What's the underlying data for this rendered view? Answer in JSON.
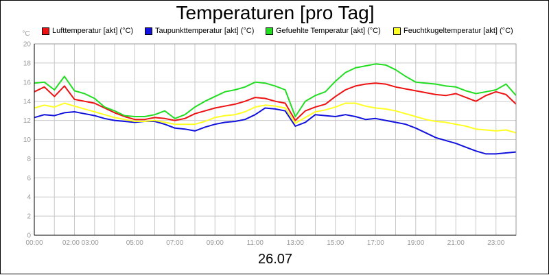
{
  "chart_data": {
    "type": "line",
    "title": "Temperaturen [pro Tag]",
    "xlabel": "26.07",
    "ylabel": "°C",
    "ylim": [
      0,
      20
    ],
    "yticks": [
      0,
      2,
      4,
      6,
      8,
      10,
      12,
      14,
      16,
      18,
      20
    ],
    "xticks": [
      "00:00",
      "02:00 03:00",
      "05:00",
      "07:00",
      "09:00",
      "11:00",
      "13:00",
      "15:00",
      "17:00",
      "19:00",
      "21:00",
      "23:00"
    ],
    "xtick_hours": [
      0,
      2.3,
      5,
      7,
      9,
      11,
      13,
      15,
      17,
      19,
      21,
      23
    ],
    "grid": true,
    "legend_position": "top",
    "x_hours": [
      0,
      0.5,
      1,
      1.5,
      2,
      2.5,
      3,
      3.5,
      4,
      4.5,
      5,
      5.5,
      6,
      6.5,
      7,
      7.5,
      8,
      8.5,
      9,
      9.5,
      10,
      10.5,
      11,
      11.5,
      12,
      12.5,
      13,
      13.5,
      14,
      14.5,
      15,
      15.5,
      16,
      16.5,
      17,
      17.5,
      18,
      18.5,
      19,
      19.5,
      20,
      20.5,
      21,
      21.5,
      22,
      22.5,
      23,
      23.5,
      24
    ],
    "series": [
      {
        "name": "Lufttemperatur [akt] (°C)",
        "color": "#ee1111",
        "values": [
          15.0,
          15.5,
          14.5,
          15.6,
          14.2,
          14.0,
          13.8,
          13.3,
          12.8,
          12.4,
          12.1,
          12.1,
          12.3,
          12.2,
          12.0,
          12.2,
          12.7,
          13.0,
          13.3,
          13.5,
          13.7,
          14.0,
          14.4,
          14.3,
          14.0,
          13.8,
          12.0,
          13.0,
          13.4,
          13.7,
          14.5,
          15.2,
          15.6,
          15.8,
          15.9,
          15.8,
          15.5,
          15.3,
          15.1,
          14.9,
          14.7,
          14.6,
          14.8,
          14.4,
          14.0,
          14.6,
          15.0,
          14.7,
          13.7
        ]
      },
      {
        "name": "Taupunkttemperatur [akt] (°C)",
        "color": "#1111dd",
        "values": [
          12.3,
          12.6,
          12.5,
          12.8,
          12.9,
          12.7,
          12.5,
          12.2,
          12.0,
          11.9,
          11.8,
          11.9,
          11.9,
          11.6,
          11.2,
          11.1,
          10.9,
          11.3,
          11.6,
          11.8,
          11.9,
          12.1,
          12.6,
          13.3,
          13.2,
          13.0,
          11.4,
          11.8,
          12.6,
          12.5,
          12.4,
          12.6,
          12.4,
          12.1,
          12.2,
          12.0,
          11.8,
          11.6,
          11.2,
          10.7,
          10.2,
          9.9,
          9.6,
          9.2,
          8.8,
          8.5,
          8.5,
          8.6,
          8.7
        ]
      },
      {
        "name": "Gefuehlte Temperatur [akt] (°C)",
        "color": "#22dd22",
        "values": [
          15.9,
          16.0,
          15.2,
          16.6,
          15.1,
          14.8,
          14.3,
          13.4,
          13.0,
          12.5,
          12.4,
          12.4,
          12.6,
          13.0,
          12.2,
          12.6,
          13.4,
          14.0,
          14.5,
          15.0,
          15.2,
          15.5,
          16.0,
          15.9,
          15.6,
          15.2,
          12.4,
          14.0,
          14.6,
          15.0,
          16.1,
          17.0,
          17.5,
          17.7,
          17.9,
          17.8,
          17.3,
          16.6,
          16.0,
          15.9,
          15.8,
          15.6,
          15.5,
          15.1,
          14.8,
          15.0,
          15.2,
          15.8,
          14.6
        ]
      },
      {
        "name": "Feuchtkugeltemperatur [akt] (°C)",
        "color": "#ffff22",
        "values": [
          13.3,
          13.6,
          13.4,
          13.8,
          13.5,
          13.2,
          12.9,
          12.6,
          12.3,
          12.1,
          11.9,
          11.9,
          12.0,
          11.8,
          11.6,
          11.6,
          11.6,
          11.9,
          12.3,
          12.5,
          12.6,
          12.9,
          13.4,
          13.6,
          13.5,
          13.3,
          11.7,
          12.3,
          12.9,
          13.1,
          13.4,
          13.8,
          13.8,
          13.5,
          13.3,
          13.2,
          13.0,
          12.7,
          12.4,
          12.1,
          11.9,
          11.8,
          11.6,
          11.4,
          11.1,
          11.0,
          10.9,
          11.0,
          10.7
        ]
      }
    ]
  }
}
